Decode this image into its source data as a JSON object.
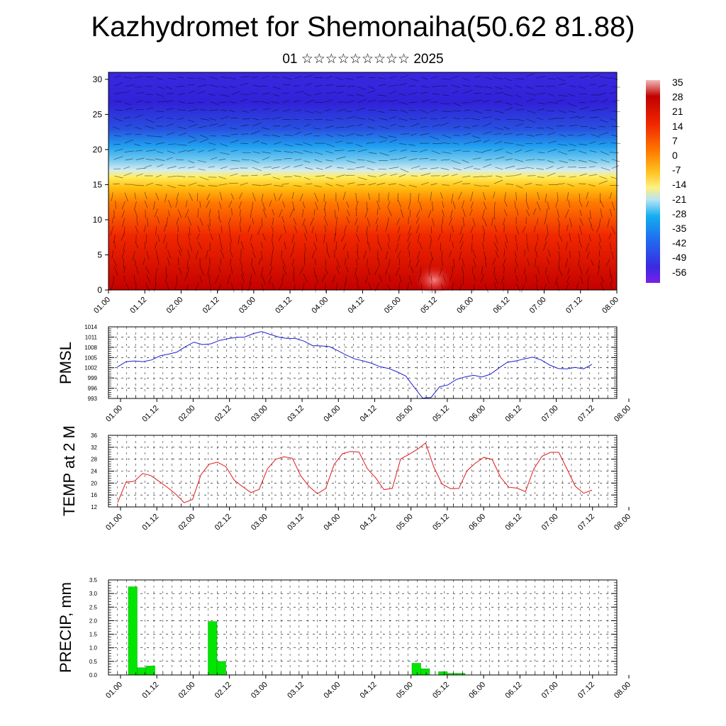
{
  "title": "Kazhydromet for Shemonaiha(50.62 81.88)",
  "subtitle": "01 ☆☆☆☆☆☆☆☆☆ 2025",
  "colors": {
    "pmsl_line": "#1f1fd6",
    "temp_line": "#e01818",
    "precip_bar": "#00e600",
    "precip_bar_edge": "#008800"
  },
  "chart_data": [
    {
      "type": "heatmap",
      "panel": "cross-section",
      "y_ticks": [
        0,
        5,
        10,
        15,
        20,
        25,
        30
      ],
      "ylim": [
        0,
        31
      ],
      "x_ticks": [
        "01.00",
        "01.12",
        "02.00",
        "02.12",
        "03.00",
        "03.12",
        "04.00",
        "04.12",
        "05.00",
        "05.12",
        "06.00",
        "06.12",
        "07.00",
        "07.12",
        "08.00"
      ],
      "colorbar_labels": [
        "35",
        "28",
        "21",
        "14",
        "7",
        "0",
        "-7",
        "-14",
        "-21",
        "-28",
        "-35",
        "-42",
        "-49",
        "-56"
      ],
      "colorbar_range": [
        -60,
        38
      ],
      "overlay": "wind vectors"
    },
    {
      "type": "line",
      "panel": "pmsl",
      "ylabel": "PMSL",
      "ylim": [
        993,
        1014
      ],
      "y_ticks": [
        993,
        996,
        999,
        1002,
        1005,
        1008,
        1011,
        1014
      ],
      "x_ticks": [
        "01.00",
        "01.12",
        "02.00",
        "02.12",
        "03.00",
        "03.12",
        "04.00",
        "04.12",
        "05.00",
        "05.12",
        "06.00",
        "06.12",
        "07.00",
        "07.12",
        "08.00"
      ],
      "x_step_hours": 3,
      "values": [
        1002.3,
        1003.8,
        1004.0,
        1003.8,
        1004.3,
        1005.5,
        1006.0,
        1006.6,
        1008.2,
        1009.5,
        1008.8,
        1009.0,
        1010.0,
        1010.5,
        1010.9,
        1011.0,
        1012.0,
        1012.6,
        1011.8,
        1011.0,
        1010.6,
        1010.6,
        1009.8,
        1008.5,
        1008.4,
        1008.2,
        1007.0,
        1005.7,
        1004.6,
        1004.0,
        1003.3,
        1002.3,
        1001.8,
        1000.8,
        999.6,
        996.3,
        993.1,
        993.3,
        996.4,
        997.0,
        998.6,
        999.3,
        999.8,
        999.3,
        1000.1,
        1001.9,
        1003.6,
        1004.0,
        1004.6,
        1005.1,
        1004.3,
        1002.8,
        1001.8,
        1001.7,
        1002.1,
        1001.7,
        1003.0
      ]
    },
    {
      "type": "line",
      "panel": "temp",
      "ylabel": "TEMP at 2 M",
      "ylim": [
        12,
        36
      ],
      "y_ticks": [
        12,
        16,
        20,
        24,
        28,
        32,
        36
      ],
      "x_ticks": [
        "01.00",
        "01.12",
        "02.00",
        "02.12",
        "03.00",
        "03.12",
        "04.00",
        "04.12",
        "05.00",
        "05.12",
        "06.00",
        "06.12",
        "07.00",
        "07.12",
        "08.00"
      ],
      "x_step_hours": 3,
      "values": [
        13.5,
        20.3,
        20.6,
        23.2,
        22.5,
        20.5,
        18.5,
        16.2,
        13.4,
        14.5,
        22.8,
        26.3,
        27.0,
        25.5,
        21.0,
        18.8,
        16.8,
        17.9,
        24.8,
        28.0,
        28.8,
        28.3,
        22.4,
        18.9,
        16.4,
        18.2,
        26.2,
        29.8,
        30.6,
        30.4,
        24.8,
        21.8,
        17.8,
        18.2,
        28.1,
        29.6,
        31.3,
        33.4,
        25.3,
        19.6,
        18.1,
        18.2,
        24.2,
        26.7,
        28.6,
        27.9,
        22.0,
        18.6,
        18.3,
        17.1,
        24.7,
        29.0,
        30.3,
        30.3,
        24.7,
        18.9,
        16.6,
        17.6
      ]
    },
    {
      "type": "bar",
      "panel": "precip",
      "ylabel": "PRECIP, mm",
      "ylim": [
        0,
        3.5
      ],
      "y_ticks": [
        "0.0",
        "0.5",
        "1.0",
        "1.5",
        "2.0",
        "2.5",
        "3.0",
        "3.5"
      ],
      "x_ticks": [
        "01.00",
        "01.12",
        "02.00",
        "02.12",
        "03.00",
        "03.12",
        "04.00",
        "04.12",
        "05.00",
        "05.12",
        "06.00",
        "06.12",
        "07.00",
        "07.12",
        "08.00"
      ],
      "x_step_hours": 3,
      "values": [
        0,
        0,
        3.25,
        0.27,
        0.33,
        0,
        0,
        0,
        0,
        0,
        0,
        1.97,
        0.5,
        0,
        0,
        0,
        0,
        0,
        0,
        0,
        0,
        0,
        0,
        0,
        0,
        0,
        0,
        0,
        0,
        0,
        0,
        0,
        0,
        0,
        0.43,
        0.23,
        0,
        0.12,
        0.06,
        0.06,
        0,
        0,
        0,
        0,
        0,
        0,
        0,
        0,
        0,
        0,
        0,
        0,
        0,
        0,
        0,
        0
      ]
    }
  ]
}
